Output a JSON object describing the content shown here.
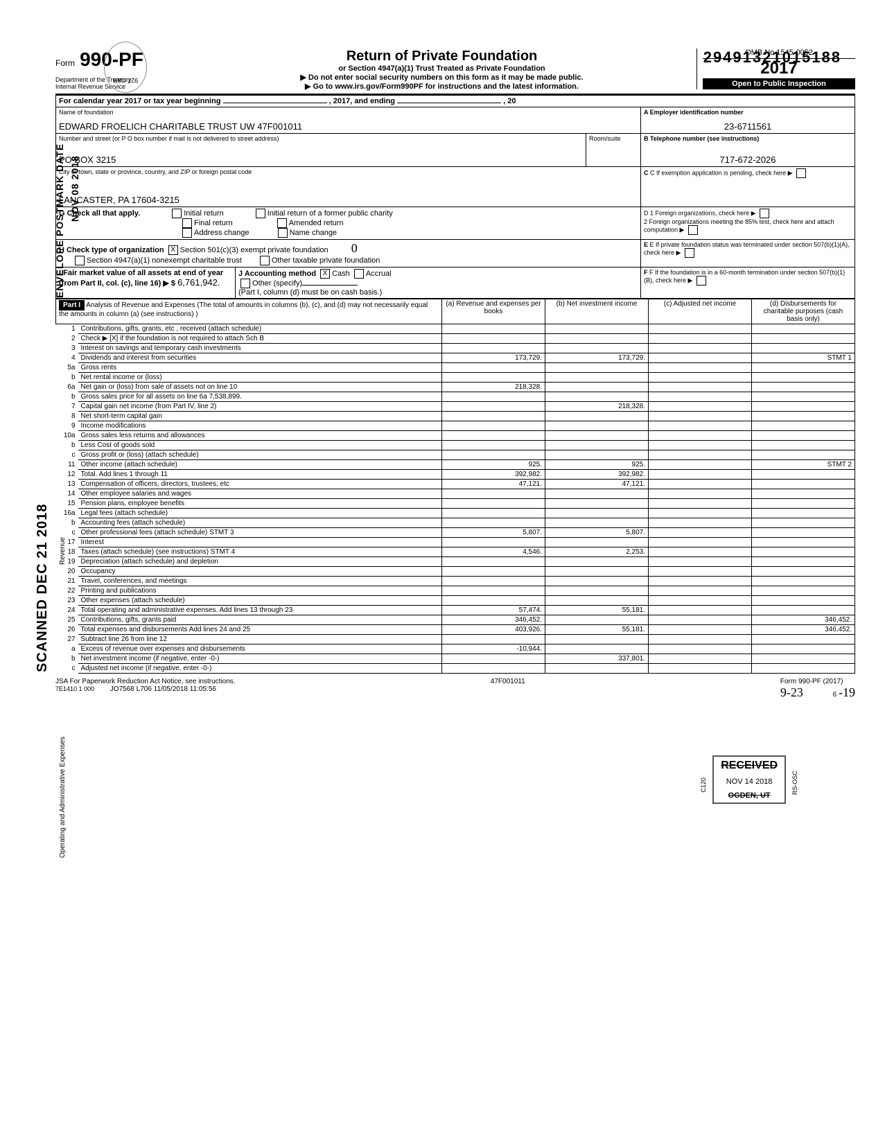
{
  "topCode": "29491321015188",
  "circleStamp": "927 C&R",
  "form": {
    "prefix": "Form",
    "number": "990-PF",
    "dept": "Department of the Treasury\nInternal Revenue Service",
    "title": "Return of Private Foundation",
    "subtitle1": "or Section 4947(a)(1) Trust Treated as Private Foundation",
    "subtitle2": "▶ Do not enter social security numbers on this form as it may be made public.",
    "subtitle3": "▶ Go to www.irs.gov/Form990PF for instructions and the latest information.",
    "omb": "OMB No 1545-0052",
    "year": "2017",
    "inspection": "Open to Public Inspection"
  },
  "calendarYear": "For calendar year 2017 or tax year beginning",
  "calendarMid": ", 2017, and ending",
  "calendarEnd": ", 20",
  "sideText1": "ENVELOPE\nPOSTMARK DATE",
  "sideDate": "NOV 08 2018",
  "sideText2": "SCANNED DEC 21 2018",
  "foundation": {
    "nameLabel": "Name of foundation",
    "name": "EDWARD FROELICH CHARITABLE TRUST UW 47F001011",
    "einLabel": "A  Employer identification number",
    "ein": "23-6711561",
    "addressLabel": "Number and street (or P O box number if mail is not delivered to street address)",
    "roomLabel": "Room/suite",
    "address": "PO BOX 3215",
    "phoneLabel": "B  Telephone number (see instructions)",
    "phone": "717-672-2026",
    "cityLabel": "City or town, state or province, country, and ZIP or foreign postal code",
    "city": "LANCASTER, PA 17604-3215",
    "cLabel": "C  If exemption application is pending, check here"
  },
  "checks": {
    "gLabel": "G  Check all that apply.",
    "g1": "Initial return",
    "g2": "Initial return of a former public charity",
    "g3": "Final return",
    "g4": "Amended return",
    "g5": "Address change",
    "g6": "Name change",
    "hLabel": "H  Check type of organization",
    "h1": "Section 501(c)(3) exempt private foundation",
    "h2": "Section 4947(a)(1) nonexempt charitable trust",
    "h3": "Other taxable private foundation",
    "hChecked": "X",
    "d1": "D 1  Foreign organizations, check here",
    "d2": "2  Foreign organizations meeting the 85% test, check here and attach computation",
    "eLabel": "E  If private foundation status was terminated under section 507(b)(1)(A), check here",
    "fLabel": "F  If the foundation is in a 60-month termination under section 507(b)(1)(B), check here",
    "iLabel": "I  Fair market value of all assets at end of year (from Part II, col. (c), line 16) ▶ $",
    "iValue": "6,761,942.",
    "jLabel": "J Accounting method",
    "j1": "Cash",
    "j1x": "X",
    "j2": "Accrual",
    "j3": "Other (specify)",
    "jNote": "(Part I, column (d) must be on cash basis.)",
    "handZero": "0"
  },
  "part1": {
    "header": "Part I",
    "title": "Analysis of Revenue and Expenses (The total of amounts in columns (b), (c), and (d) may not necessarily equal the amounts in column (a) (see instructions) )",
    "colA": "(a) Revenue and expenses per books",
    "colB": "(b) Net investment income",
    "colC": "(c) Adjusted net income",
    "colD": "(d) Disbursements for charitable purposes (cash basis only)"
  },
  "sideRevenue": "Revenue",
  "sideExpenses": "Operating and Administrative Expenses",
  "lines": [
    {
      "n": "1",
      "d": "Contributions, gifts, grants, etc , received (attach schedule)"
    },
    {
      "n": "2",
      "d": "Check ▶ [X] if the foundation is not required to attach Sch B"
    },
    {
      "n": "3",
      "d": "Interest on savings and temporary cash investments"
    },
    {
      "n": "4",
      "d": "Dividends and interest from securities",
      "a": "173,729.",
      "b": "173,729.",
      "stmt": "STMT 1"
    },
    {
      "n": "5a",
      "d": "Gross rents"
    },
    {
      "n": "b",
      "d": "Net rental income or (loss)"
    },
    {
      "n": "6a",
      "d": "Net gain or (loss) from sale of assets not on line 10",
      "a": "218,328."
    },
    {
      "n": "b",
      "d": "Gross sales price for all assets on line 6a     7,538,899."
    },
    {
      "n": "7",
      "d": "Capital gain net income (from Part IV, line 2)",
      "b": "218,328."
    },
    {
      "n": "8",
      "d": "Net short-term capital gain"
    },
    {
      "n": "9",
      "d": "Income modifications"
    },
    {
      "n": "10a",
      "d": "Gross sales less returns and allowances"
    },
    {
      "n": "b",
      "d": "Less Cost of goods sold"
    },
    {
      "n": "c",
      "d": "Gross profit or (loss) (attach schedule)"
    },
    {
      "n": "11",
      "d": "Other income (attach schedule)",
      "a": "925.",
      "b": "925.",
      "stmt": "STMT 2"
    },
    {
      "n": "12",
      "d": "Total. Add lines 1 through 11",
      "a": "392,982.",
      "b": "392,982."
    },
    {
      "n": "13",
      "d": "Compensation of officers, directors, trustees, etc",
      "a": "47,121.",
      "b": "47,121."
    },
    {
      "n": "14",
      "d": "Other employee salaries and wages"
    },
    {
      "n": "15",
      "d": "Pension plans, employee benefits"
    },
    {
      "n": "16a",
      "d": "Legal fees (attach schedule)"
    },
    {
      "n": "b",
      "d": "Accounting fees (attach schedule)"
    },
    {
      "n": "c",
      "d": "Other professional fees (attach schedule) STMT 3",
      "a": "5,807.",
      "b": "5,807."
    },
    {
      "n": "17",
      "d": "Interest"
    },
    {
      "n": "18",
      "d": "Taxes (attach schedule) (see instructions) STMT 4",
      "a": "4,546.",
      "b": "2,253."
    },
    {
      "n": "19",
      "d": "Depreciation (attach schedule) and depletion"
    },
    {
      "n": "20",
      "d": "Occupancy"
    },
    {
      "n": "21",
      "d": "Travel, conferences, and meetings"
    },
    {
      "n": "22",
      "d": "Printing and publications"
    },
    {
      "n": "23",
      "d": "Other expenses (attach schedule)"
    },
    {
      "n": "24",
      "d": "Total operating and administrative expenses. Add lines 13 through 23",
      "a": "57,474.",
      "b": "55,181."
    },
    {
      "n": "25",
      "d": "Contributions, gifts, grants paid",
      "a": "346,452.",
      "dd": "346,452."
    },
    {
      "n": "26",
      "d": "Total expenses and disbursements  Add lines 24 and 25",
      "a": "403,926.",
      "b": "55,181.",
      "dd": "346,452."
    },
    {
      "n": "27",
      "d": "Subtract line 26 from line 12"
    },
    {
      "n": "a",
      "d": "Excess of revenue over expenses and disbursements",
      "a": "-10,944."
    },
    {
      "n": "b",
      "d": "Net investment income (if negative, enter -0-)",
      "b": "337,801."
    },
    {
      "n": "c",
      "d": "Adjusted net income (if negative, enter -0-)"
    }
  ],
  "receivedStamp": {
    "received": "RECEIVED",
    "date": "NOV 14 2018",
    "city": "OGDEN, UT",
    "side1": "C120",
    "side2": "RS-OSC"
  },
  "footer": {
    "jsa": "JSA  For Paperwork Reduction Act Notice, see instructions.",
    "code": "7E1410 1 000",
    "batch": "JO7568 L706 11/05/2018 11:05:56",
    "mid": "47F001011",
    "form": "Form 990-PF (2017)",
    "page": "6",
    "hw1": "9-23",
    "hw2": "-19"
  }
}
